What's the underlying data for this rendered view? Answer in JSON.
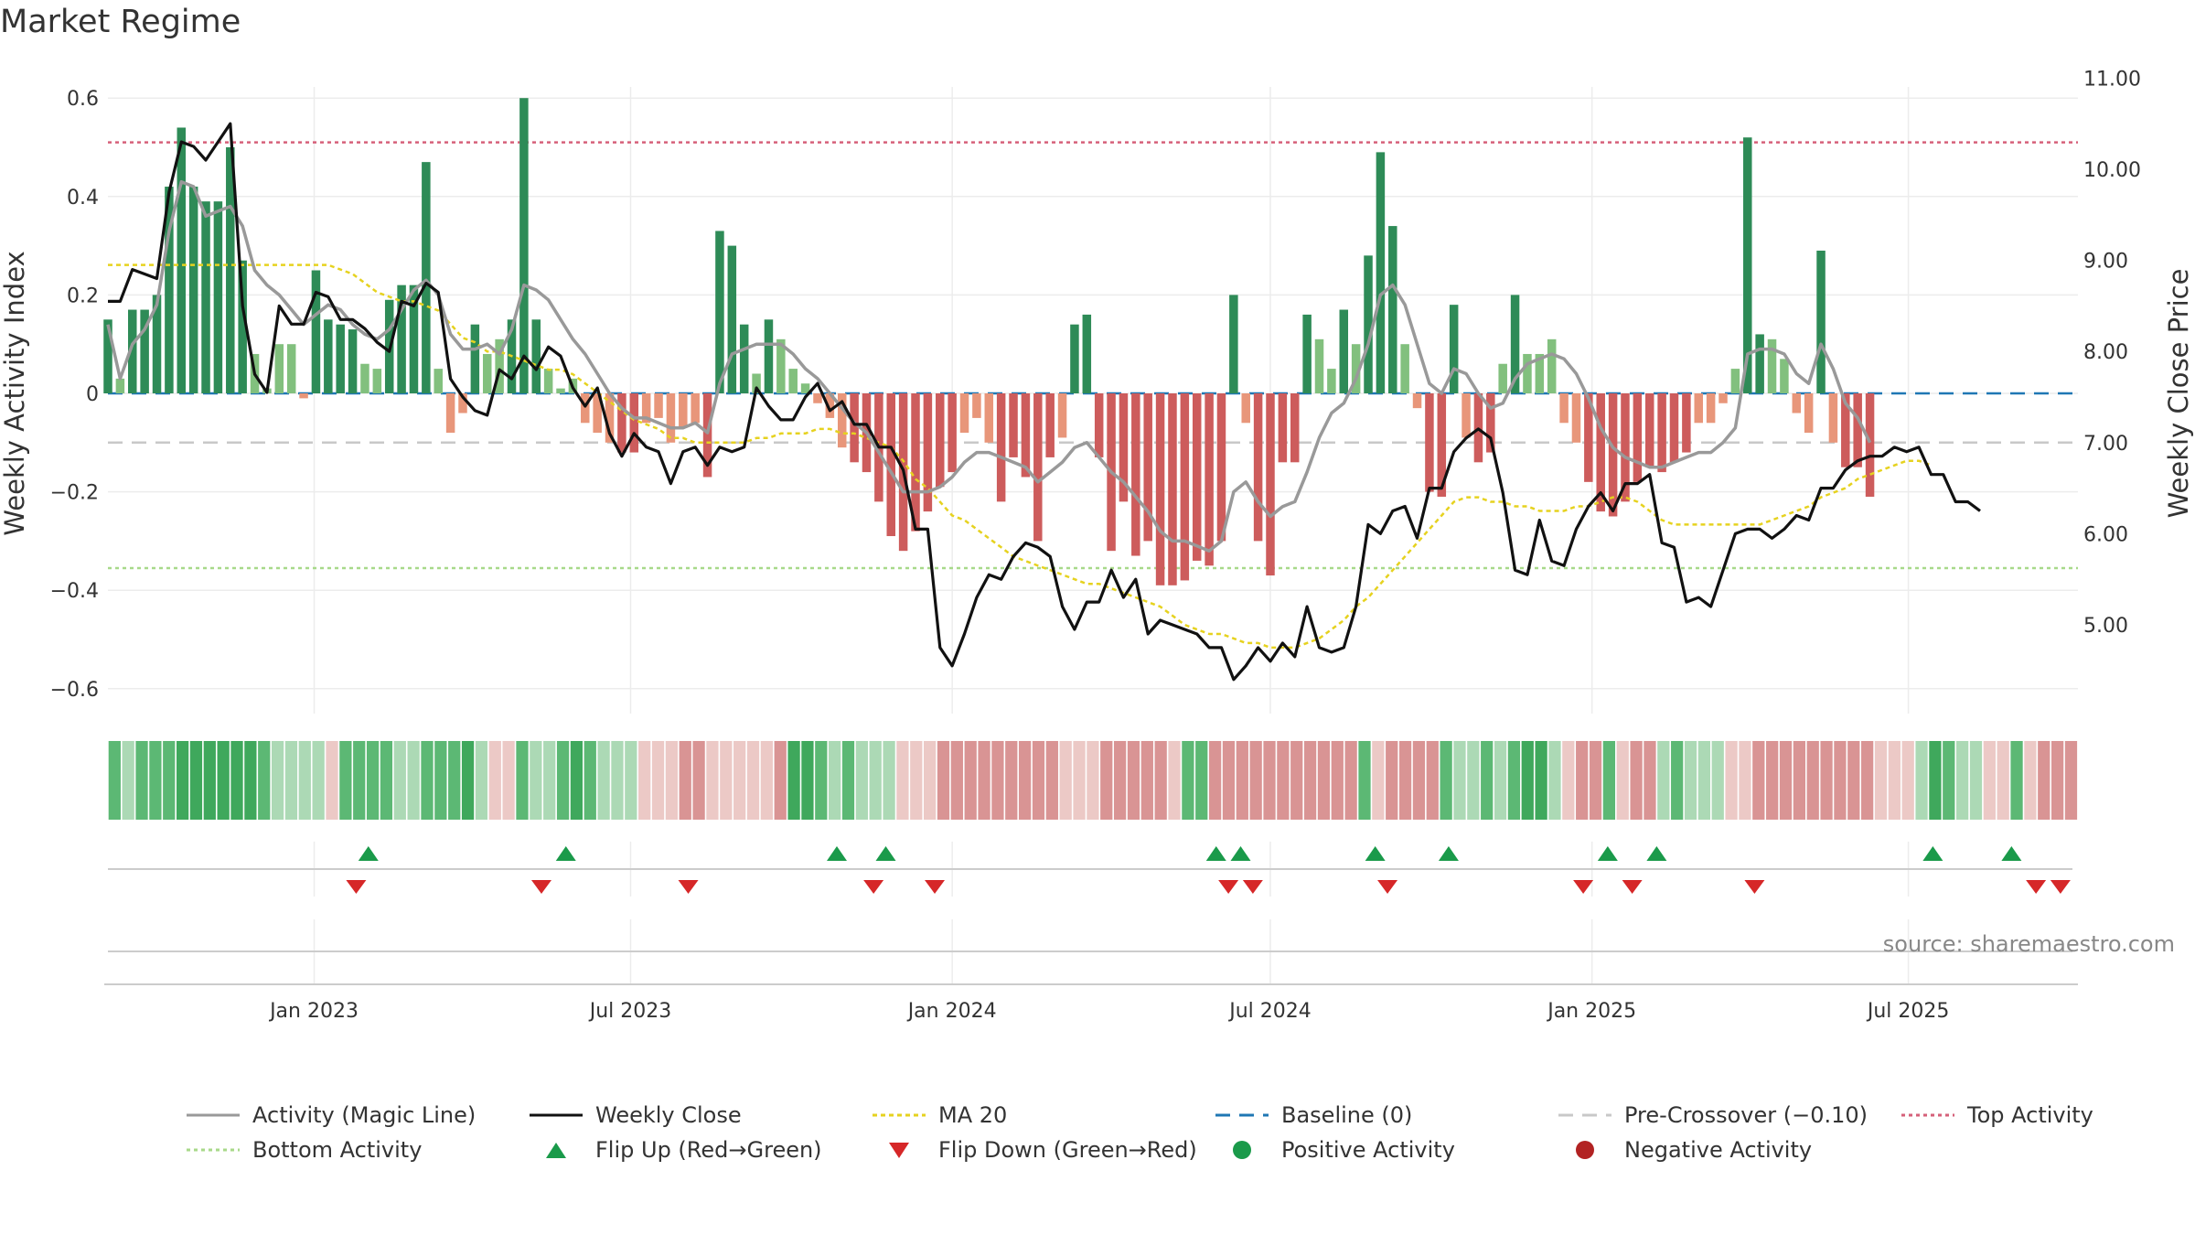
{
  "title": "Market Regime",
  "source_text": "source: sharemaestro.com",
  "colors": {
    "pos_strong": "#2e8b57",
    "pos_light": "#82c07e",
    "neg_strong": "#cd5c5c",
    "neg_light": "#e8967a",
    "magic_line": "#999999",
    "close": "#111111",
    "ma20": "#e6d21f",
    "baseline": "#1f77b4",
    "pre_crossover": "#c8c8c8",
    "top_line": "#d6607a",
    "bottom_line": "#a8d98a",
    "flip_up": "#1a9a4a",
    "flip_down": "#d62728"
  },
  "legend": [
    {
      "key": "magic",
      "label": "Activity (Magic Line)",
      "symbol": "line",
      "color": "#999999",
      "dash": "",
      "icon": "magic-line-icon"
    },
    {
      "key": "close",
      "label": "Weekly Close",
      "symbol": "line",
      "color": "#111111",
      "dash": "",
      "icon": "close-line-icon"
    },
    {
      "key": "ma20",
      "label": "MA 20",
      "symbol": "line",
      "color": "#e6d21f",
      "dash": "5,4",
      "icon": "ma20-line-icon"
    },
    {
      "key": "baseline",
      "label": "Baseline (0)",
      "symbol": "line",
      "color": "#1f77b4",
      "dash": "16,10",
      "icon": "baseline-icon"
    },
    {
      "key": "pre",
      "label": "Pre-Crossover (−0.10)",
      "symbol": "line",
      "color": "#c8c8c8",
      "dash": "16,10",
      "icon": "pre-crossover-icon"
    },
    {
      "key": "top",
      "label": "Top Activity",
      "symbol": "line",
      "color": "#d6607a",
      "dash": "4,4",
      "icon": "top-activity-icon"
    },
    {
      "key": "bottom",
      "label": "Bottom Activity",
      "symbol": "line",
      "color": "#a8d98a",
      "dash": "4,4",
      "icon": "bottom-activity-icon"
    },
    {
      "key": "flipup",
      "label": "Flip Up (Red→Green)",
      "symbol": "tri-up",
      "color": "#1a9a4a",
      "dash": "",
      "icon": "flip-up-icon"
    },
    {
      "key": "flipdown",
      "label": "Flip Down (Green→Red)",
      "symbol": "tri-down",
      "color": "#d62728",
      "dash": "",
      "icon": "flip-down-icon"
    },
    {
      "key": "posact",
      "label": "Positive Activity",
      "symbol": "dot",
      "color": "#1a9a4a",
      "dash": "",
      "icon": "positive-dot-icon"
    },
    {
      "key": "negact",
      "label": "Negative Activity",
      "symbol": "dot",
      "color": "#b22222",
      "dash": "",
      "icon": "negative-dot-icon"
    }
  ],
  "chart_data": {
    "type": "bar",
    "title": "Market Regime",
    "xlabel": "",
    "ylabel": "Weekly Activity Index",
    "y2label": "Weekly Close Price",
    "ylim": [
      -0.65,
      0.65
    ],
    "y2lim": [
      4.05,
      11.1
    ],
    "start_date": "2022-09-05",
    "end_date": "2025-10-06",
    "x_ticks": [
      {
        "date": "2023-01-01",
        "label": "Jan 2023"
      },
      {
        "date": "2023-07-01",
        "label": "Jul 2023"
      },
      {
        "date": "2024-01-01",
        "label": "Jan 2024"
      },
      {
        "date": "2024-07-01",
        "label": "Jul 2024"
      },
      {
        "date": "2025-01-01",
        "label": "Jan 2025"
      },
      {
        "date": "2025-07-01",
        "label": "Jul 2025"
      }
    ],
    "y_ticks": [
      {
        "v": 0.6,
        "label": "0.6"
      },
      {
        "v": 0.4,
        "label": "0.4"
      },
      {
        "v": 0.2,
        "label": "0.2"
      },
      {
        "v": 0,
        "label": "0"
      },
      {
        "v": -0.2,
        "label": "−0.2"
      },
      {
        "v": -0.4,
        "label": "−0.4"
      },
      {
        "v": -0.6,
        "label": "−0.6"
      }
    ],
    "y2_ticks": [
      {
        "v": 11,
        "label": "11.00"
      },
      {
        "v": 10,
        "label": "10.00"
      },
      {
        "v": 9,
        "label": "9.00"
      },
      {
        "v": 8,
        "label": "8.00"
      },
      {
        "v": 7,
        "label": "7.00"
      },
      {
        "v": 6,
        "label": "6.00"
      },
      {
        "v": 5,
        "label": "5.00"
      }
    ],
    "reference_lines": {
      "top_activity": 0.51,
      "bottom_activity": -0.355,
      "pre_crossover": -0.1,
      "baseline": 0
    },
    "activity": [
      0.15,
      0.03,
      0.17,
      0.17,
      0.2,
      0.42,
      0.54,
      0.42,
      0.39,
      0.39,
      0.5,
      0.27,
      0.08,
      0.01,
      0.1,
      0.1,
      -0.01,
      0.25,
      0.15,
      0.14,
      0.13,
      0.06,
      0.05,
      0.19,
      0.22,
      0.22,
      0.47,
      0.05,
      -0.08,
      -0.04,
      0.14,
      0.08,
      0.11,
      0.15,
      0.6,
      0.15,
      0.05,
      0.01,
      0.03,
      -0.06,
      -0.08,
      -0.1,
      -0.12,
      -0.12,
      -0.06,
      -0.05,
      -0.1,
      -0.07,
      -0.06,
      -0.17,
      0.33,
      0.3,
      0.14,
      0.04,
      0.15,
      0.11,
      0.05,
      0.02,
      -0.02,
      -0.05,
      -0.11,
      -0.14,
      -0.16,
      -0.22,
      -0.29,
      -0.32,
      -0.28,
      -0.24,
      -0.19,
      -0.16,
      -0.08,
      -0.05,
      -0.1,
      -0.22,
      -0.13,
      -0.17,
      -0.3,
      -0.13,
      -0.09,
      0.14,
      0.16,
      -0.13,
      -0.32,
      -0.22,
      -0.33,
      -0.3,
      -0.39,
      -0.39,
      -0.38,
      -0.34,
      -0.35,
      -0.3,
      0.2,
      -0.06,
      -0.3,
      -0.37,
      -0.14,
      -0.14,
      0.16,
      0.11,
      0.05,
      0.17,
      0.1,
      0.28,
      0.49,
      0.34,
      0.1,
      -0.03,
      -0.2,
      -0.21,
      0.18,
      -0.09,
      -0.14,
      -0.12,
      0.06,
      0.2,
      0.08,
      0.08,
      0.11,
      -0.06,
      -0.1,
      -0.18,
      -0.24,
      -0.25,
      -0.22,
      -0.18,
      -0.15,
      -0.16,
      -0.14,
      -0.12,
      -0.06,
      -0.06,
      -0.02,
      0.05,
      0.52,
      0.12,
      0.11,
      0.07,
      -0.04,
      -0.08,
      0.29,
      -0.1,
      -0.15,
      -0.15,
      -0.21
    ],
    "close": [
      8.55,
      8.55,
      8.9,
      8.85,
      8.8,
      9.75,
      10.3,
      10.25,
      10.1,
      10.3,
      10.5,
      8.5,
      7.75,
      7.55,
      8.5,
      8.3,
      8.3,
      8.65,
      8.6,
      8.35,
      8.35,
      8.25,
      8.1,
      8.0,
      8.55,
      8.5,
      8.75,
      8.65,
      7.7,
      7.5,
      7.35,
      7.3,
      7.8,
      7.7,
      7.95,
      7.8,
      8.05,
      7.95,
      7.6,
      7.4,
      7.6,
      7.1,
      6.85,
      7.1,
      6.95,
      6.9,
      6.55,
      6.9,
      6.95,
      6.75,
      6.95,
      6.9,
      6.95,
      7.6,
      7.4,
      7.25,
      7.25,
      7.5,
      7.65,
      7.35,
      7.45,
      7.2,
      7.2,
      6.95,
      6.95,
      6.7,
      6.05,
      6.05,
      4.75,
      4.55,
      4.9,
      5.3,
      5.55,
      5.5,
      5.75,
      5.9,
      5.85,
      5.75,
      5.2,
      4.95,
      5.25,
      5.25,
      5.6,
      5.3,
      5.5,
      4.9,
      5.05,
      5.0,
      4.95,
      4.9,
      4.75,
      4.75,
      4.4,
      4.55,
      4.75,
      4.6,
      4.8,
      4.65,
      5.2,
      4.75,
      4.7,
      4.75,
      5.2,
      6.1,
      6.0,
      6.25,
      6.3,
      5.95,
      6.5,
      6.5,
      6.9,
      7.05,
      7.15,
      7.05,
      6.45,
      5.6,
      5.55,
      6.15,
      5.7,
      5.65,
      6.05,
      6.3,
      6.45,
      6.25,
      6.55,
      6.55,
      6.65,
      5.9,
      5.85,
      5.25,
      5.3,
      5.2,
      5.6,
      6.0,
      6.05,
      6.05,
      5.95,
      6.05,
      6.2,
      6.15,
      6.5,
      6.5,
      6.7,
      6.8,
      6.85,
      6.85,
      6.95,
      6.9,
      6.95,
      6.65,
      6.65,
      6.35,
      6.35,
      6.25
    ],
    "magic_line": [
      0.14,
      0.03,
      0.1,
      0.13,
      0.18,
      0.33,
      0.43,
      0.42,
      0.36,
      0.37,
      0.38,
      0.34,
      0.25,
      0.22,
      0.2,
      0.17,
      0.14,
      0.16,
      0.18,
      0.17,
      0.14,
      0.12,
      0.11,
      0.13,
      0.17,
      0.21,
      0.23,
      0.2,
      0.12,
      0.09,
      0.09,
      0.1,
      0.08,
      0.13,
      0.22,
      0.21,
      0.19,
      0.15,
      0.11,
      0.08,
      0.04,
      0.0,
      -0.03,
      -0.05,
      -0.05,
      -0.06,
      -0.07,
      -0.07,
      -0.06,
      -0.08,
      0.02,
      0.08,
      0.09,
      0.1,
      0.1,
      0.1,
      0.08,
      0.05,
      0.03,
      0.0,
      -0.03,
      -0.06,
      -0.08,
      -0.12,
      -0.16,
      -0.2,
      -0.2,
      -0.2,
      -0.19,
      -0.17,
      -0.14,
      -0.12,
      -0.12,
      -0.13,
      -0.14,
      -0.15,
      -0.18,
      -0.16,
      -0.14,
      -0.11,
      -0.1,
      -0.13,
      -0.16,
      -0.18,
      -0.21,
      -0.24,
      -0.28,
      -0.3,
      -0.3,
      -0.31,
      -0.32,
      -0.3,
      -0.2,
      -0.18,
      -0.22,
      -0.25,
      -0.23,
      -0.22,
      -0.16,
      -0.09,
      -0.04,
      -0.02,
      0.03,
      0.1,
      0.2,
      0.22,
      0.18,
      0.1,
      0.02,
      0.0,
      0.05,
      0.04,
      0.0,
      -0.03,
      -0.02,
      0.03,
      0.06,
      0.07,
      0.08,
      0.07,
      0.04,
      -0.01,
      -0.07,
      -0.11,
      -0.13,
      -0.14,
      -0.15,
      -0.15,
      -0.14,
      -0.13,
      -0.12,
      -0.12,
      -0.1,
      -0.07,
      0.08,
      0.09,
      0.09,
      0.08,
      0.04,
      0.02,
      0.1,
      0.05,
      -0.02,
      -0.05,
      -0.1
    ],
    "ma20": [
      8.95,
      8.95,
      8.95,
      8.95,
      8.95,
      8.95,
      8.95,
      8.95,
      8.95,
      8.95,
      8.95,
      8.95,
      8.95,
      8.95,
      8.95,
      8.95,
      8.95,
      8.95,
      8.95,
      8.9,
      8.85,
      8.75,
      8.65,
      8.6,
      8.55,
      8.55,
      8.5,
      8.45,
      8.3,
      8.15,
      8.1,
      8.0,
      8.0,
      7.95,
      7.9,
      7.85,
      7.8,
      7.8,
      7.75,
      7.65,
      7.55,
      7.45,
      7.35,
      7.25,
      7.2,
      7.15,
      7.05,
      7.05,
      7.0,
      7.0,
      7.0,
      7.0,
      7.0,
      7.05,
      7.05,
      7.1,
      7.1,
      7.1,
      7.15,
      7.15,
      7.1,
      7.1,
      7.05,
      7.0,
      6.95,
      6.8,
      6.6,
      6.5,
      6.35,
      6.2,
      6.15,
      6.05,
      5.95,
      5.85,
      5.75,
      5.7,
      5.65,
      5.6,
      5.55,
      5.5,
      5.45,
      5.45,
      5.4,
      5.35,
      5.3,
      5.25,
      5.2,
      5.1,
      5.0,
      4.95,
      4.9,
      4.9,
      4.85,
      4.8,
      4.8,
      4.75,
      4.75,
      4.75,
      4.8,
      4.85,
      4.95,
      5.05,
      5.2,
      5.3,
      5.45,
      5.6,
      5.75,
      5.9,
      6.05,
      6.2,
      6.35,
      6.4,
      6.4,
      6.35,
      6.35,
      6.3,
      6.3,
      6.25,
      6.25,
      6.25,
      6.3,
      6.3,
      6.35,
      6.4,
      6.4,
      6.35,
      6.25,
      6.15,
      6.1,
      6.1,
      6.1,
      6.1,
      6.1,
      6.1,
      6.1,
      6.1,
      6.15,
      6.2,
      6.25,
      6.3,
      6.4,
      6.45,
      6.5,
      6.6,
      6.65,
      6.7,
      6.75,
      6.8,
      6.8,
      6.75
    ],
    "flip_up_dates": [
      "2023-02-01",
      "2023-05-25",
      "2023-10-27",
      "2023-11-24",
      "2024-05-31",
      "2024-06-14",
      "2024-08-30",
      "2024-10-11",
      "2025-01-10",
      "2025-02-07",
      "2025-07-15",
      "2025-08-29"
    ],
    "flip_down_dates": [
      "2023-01-25",
      "2023-05-11",
      "2023-08-03",
      "2023-11-17",
      "2023-12-22",
      "2024-06-07",
      "2024-06-21",
      "2024-09-06",
      "2024-12-27",
      "2025-01-24",
      "2025-04-04",
      "2025-09-12",
      "2025-09-26"
    ]
  }
}
